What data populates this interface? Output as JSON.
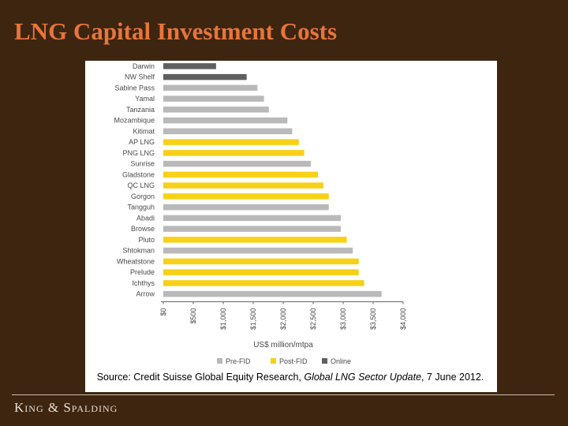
{
  "slide": {
    "title": "LNG Capital Investment Costs",
    "footer_logo": "King & Spalding"
  },
  "colors": {
    "background": "#3d2510",
    "title": "#e8753a",
    "pre_fid": "#b9b9b9",
    "post_fid": "#f7d117",
    "online": "#5f5f5f"
  },
  "chart_data": {
    "type": "bar",
    "orientation": "horizontal",
    "title": "",
    "xlabel": "US$ million/mtpa",
    "ylabel": "",
    "xlim": [
      0,
      4000
    ],
    "x_ticks": [
      {
        "value": 0,
        "label": "$0"
      },
      {
        "value": 500,
        "label": "$500"
      },
      {
        "value": 1000,
        "label": "$1,000"
      },
      {
        "value": 1500,
        "label": "$1,500"
      },
      {
        "value": 2000,
        "label": "$2,000"
      },
      {
        "value": 2500,
        "label": "$2,500"
      },
      {
        "value": 3000,
        "label": "$3,000"
      },
      {
        "value": 3500,
        "label": "$3,500"
      },
      {
        "value": 4000,
        "label": "$4,000"
      }
    ],
    "grid": false,
    "legend_position": "bottom",
    "legend": [
      {
        "label": "Pre-FID",
        "status": "pre"
      },
      {
        "label": "Post-FID",
        "status": "post"
      },
      {
        "label": "Online",
        "status": "online"
      }
    ],
    "bars": [
      {
        "label": "Darwin",
        "value": 880,
        "status": "online"
      },
      {
        "label": "NW Shelf",
        "value": 1390,
        "status": "online"
      },
      {
        "label": "Sabine Pass",
        "value": 1570,
        "status": "pre"
      },
      {
        "label": "Yamal",
        "value": 1680,
        "status": "pre"
      },
      {
        "label": "Tanzania",
        "value": 1760,
        "status": "pre"
      },
      {
        "label": "Mozambique",
        "value": 2070,
        "status": "pre"
      },
      {
        "label": "Kitimat",
        "value": 2150,
        "status": "pre"
      },
      {
        "label": "AP LNG",
        "value": 2260,
        "status": "post"
      },
      {
        "label": "PNG LNG",
        "value": 2350,
        "status": "post"
      },
      {
        "label": "Sunrise",
        "value": 2460,
        "status": "pre"
      },
      {
        "label": "Gladstone",
        "value": 2580,
        "status": "post"
      },
      {
        "label": "QC LNG",
        "value": 2670,
        "status": "post"
      },
      {
        "label": "Gorgon",
        "value": 2760,
        "status": "post"
      },
      {
        "label": "Tangguh",
        "value": 2760,
        "status": "pre"
      },
      {
        "label": "Abadi",
        "value": 2960,
        "status": "pre"
      },
      {
        "label": "Browse",
        "value": 2960,
        "status": "pre"
      },
      {
        "label": "Pluto",
        "value": 3060,
        "status": "post"
      },
      {
        "label": "Shtokman",
        "value": 3160,
        "status": "pre"
      },
      {
        "label": "Wheatstone",
        "value": 3260,
        "status": "post"
      },
      {
        "label": "Prelude",
        "value": 3260,
        "status": "post"
      },
      {
        "label": "Ichthys",
        "value": 3350,
        "status": "post"
      },
      {
        "label": "Arrow",
        "value": 3640,
        "status": "pre"
      }
    ],
    "source_prefix": "Source: Credit Suisse Global Equity Research, ",
    "source_italic": "Global LNG Sector Update",
    "source_suffix": ", 7 June 2012."
  }
}
